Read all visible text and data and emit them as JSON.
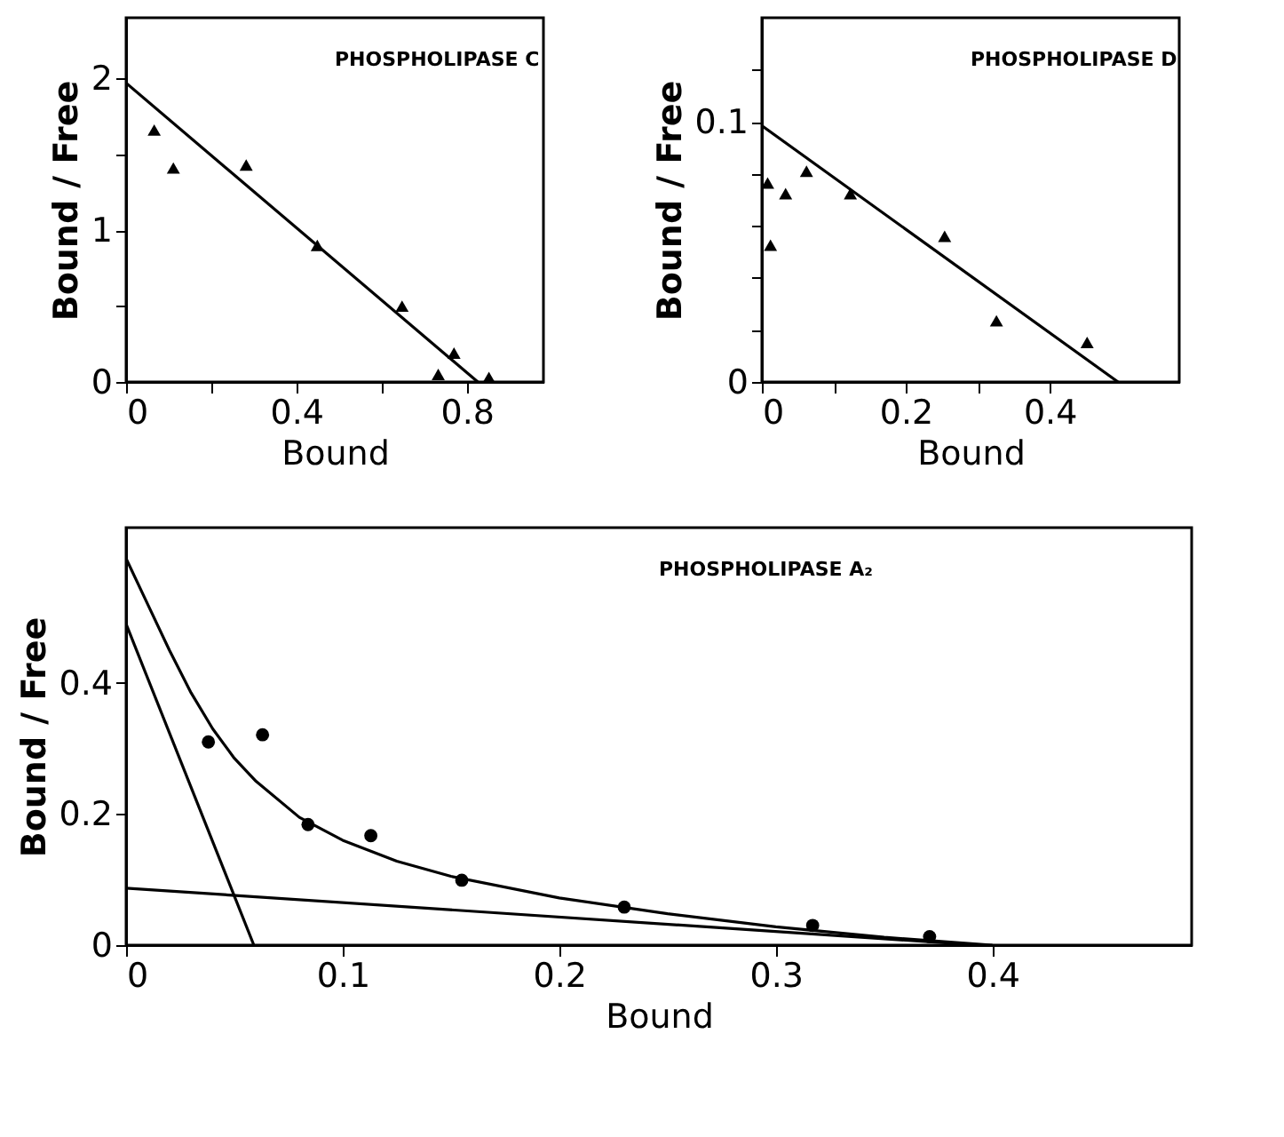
{
  "chart_data": [
    {
      "type": "scatter",
      "title": "PHOSPHOLIPASE C",
      "xlabel": "Bound",
      "ylabel": "Bound / Free",
      "grid": false,
      "xlim": [
        0,
        0.98
      ],
      "ylim": [
        0,
        2.4
      ],
      "xticks": [
        0,
        {
          "value": 0.2,
          "label": null
        },
        0.4,
        {
          "value": 0.6,
          "label": null
        },
        0.8
      ],
      "yticks": [
        0,
        {
          "value": 0.5,
          "label": null
        },
        1,
        {
          "value": 1.5,
          "label": null
        },
        2
      ],
      "series": [
        {
          "color": "#000000",
          "marker": "triangle",
          "x": [
            0.066,
            0.111,
            0.282,
            0.449,
            0.648,
            0.733,
            0.77,
            0.852
          ],
          "values": [
            1.66,
            1.41,
            1.43,
            0.9,
            0.5,
            0.05,
            0.19,
            0.03
          ]
        },
        {
          "type": "line",
          "color": "#000000",
          "x": [
            0,
            0.826
          ],
          "values": [
            1.97,
            0
          ]
        }
      ]
    },
    {
      "type": "scatter",
      "title": "PHOSPHOLIPASE D",
      "xlabel": "Bound",
      "ylabel": "Bound / Free",
      "grid": false,
      "xlim": [
        0,
        0.58
      ],
      "ylim": [
        0,
        0.14
      ],
      "xticks": [
        0,
        {
          "value": 0.1,
          "label": null
        },
        0.2,
        {
          "value": 0.3,
          "label": null
        },
        0.4
      ],
      "yticks": [
        0,
        {
          "value": 0.02,
          "label": null
        },
        {
          "value": 0.04,
          "label": null
        },
        {
          "value": 0.06,
          "label": null
        },
        {
          "value": 0.08,
          "label": null
        },
        0.1,
        {
          "value": 0.12,
          "label": null
        }
      ],
      "series": [
        {
          "color": "#000000",
          "marker": "triangle",
          "x": [
            0.008,
            0.012,
            0.033,
            0.062,
            0.123,
            0.254,
            0.326,
            0.452
          ],
          "values": [
            0.0765,
            0.0526,
            0.0724,
            0.081,
            0.0724,
            0.056,
            0.0235,
            0.0152
          ]
        },
        {
          "type": "line",
          "color": "#000000",
          "x": [
            0,
            0.495
          ],
          "values": [
            0.0985,
            0
          ]
        }
      ]
    },
    {
      "type": "scatter",
      "title": "PHOSPHOLIPASE A₂",
      "xlabel": "Bound",
      "ylabel": "Bound / Free",
      "grid": false,
      "xlim": [
        0,
        0.492
      ],
      "ylim": [
        0,
        0.637
      ],
      "xticks": [
        0,
        0.1,
        0.2,
        0.3,
        0.4
      ],
      "yticks": [
        0,
        0.2,
        0.4
      ],
      "series": [
        {
          "color": "#000000",
          "marker": "circle",
          "x": [
            0.038,
            0.063,
            0.084,
            0.113,
            0.155,
            0.23,
            0.317,
            0.371
          ],
          "values": [
            0.31,
            0.321,
            0.184,
            0.167,
            0.099,
            0.058,
            0.03,
            0.013
          ]
        },
        {
          "type": "line",
          "color": "#000000",
          "x": [
            0,
            0.01,
            0.02,
            0.03,
            0.04,
            0.05,
            0.06,
            0.08,
            0.1,
            0.125,
            0.15,
            0.2,
            0.25,
            0.3,
            0.35,
            0.4
          ],
          "values": [
            0.59,
            0.52,
            0.45,
            0.385,
            0.33,
            0.285,
            0.25,
            0.195,
            0.16,
            0.128,
            0.105,
            0.072,
            0.048,
            0.028,
            0.012,
            0
          ]
        },
        {
          "type": "line",
          "color": "#000000",
          "x": [
            0,
            0.059
          ],
          "values": [
            0.49,
            0
          ]
        },
        {
          "type": "line",
          "color": "#000000",
          "x": [
            0,
            0.394
          ],
          "values": [
            0.087,
            0
          ]
        }
      ]
    }
  ]
}
